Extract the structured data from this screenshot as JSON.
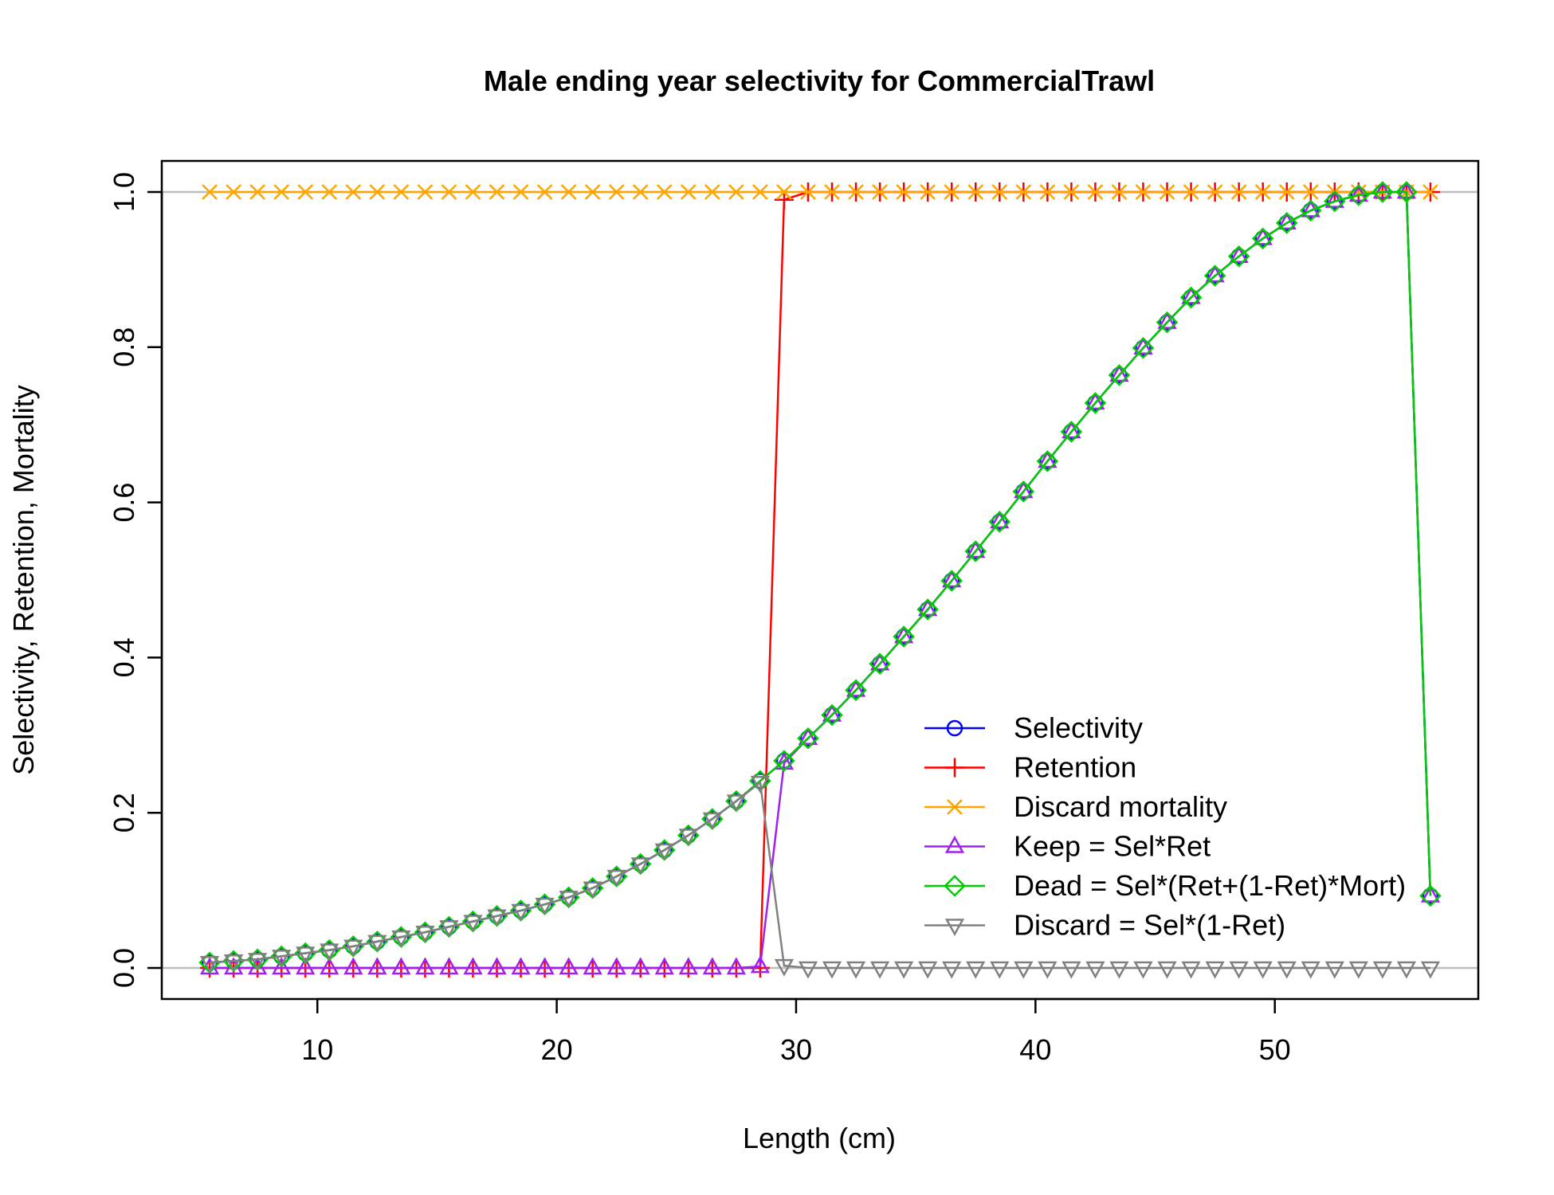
{
  "chart_data": {
    "type": "line",
    "title": "Male ending year selectivity for CommercialTrawl",
    "xlabel": "Length (cm)",
    "ylabel": "Selectivity, Retention, Mortality",
    "xlim": [
      3.5,
      58.5
    ],
    "ylim": [
      -0.04,
      1.04
    ],
    "xticks": [
      10,
      20,
      30,
      40,
      50
    ],
    "yticks": [
      0.0,
      0.2,
      0.4,
      0.6,
      0.8,
      1.0
    ],
    "xtick_labels": [
      "10",
      "20",
      "30",
      "40",
      "50"
    ],
    "ytick_labels": [
      "0.0",
      "0.2",
      "0.4",
      "0.6",
      "0.8",
      "1.0"
    ],
    "reference_lines": [
      0,
      1
    ],
    "legend_position": "bottom-right",
    "x": [
      5.5,
      6.5,
      7.5,
      8.5,
      9.5,
      10.5,
      11.5,
      12.5,
      13.5,
      14.5,
      15.5,
      16.5,
      17.5,
      18.5,
      19.5,
      20.5,
      21.5,
      22.5,
      23.5,
      24.5,
      25.5,
      26.5,
      27.5,
      28.5,
      29.5,
      30.5,
      31.5,
      32.5,
      33.5,
      34.5,
      35.5,
      36.5,
      37.5,
      38.5,
      39.5,
      40.5,
      41.5,
      42.5,
      43.5,
      44.5,
      45.5,
      46.5,
      47.5,
      48.5,
      49.5,
      50.5,
      51.5,
      52.5,
      53.5,
      54.5,
      55.5,
      56.5
    ],
    "series": [
      {
        "name": "Selectivity",
        "color": "#0000ff",
        "marker": "circle",
        "values": [
          0.007,
          0.009,
          0.011,
          0.015,
          0.019,
          0.023,
          0.028,
          0.034,
          0.04,
          0.046,
          0.053,
          0.06,
          0.067,
          0.074,
          0.082,
          0.091,
          0.103,
          0.118,
          0.134,
          0.152,
          0.171,
          0.192,
          0.215,
          0.241,
          0.267,
          0.296,
          0.326,
          0.358,
          0.392,
          0.427,
          0.462,
          0.499,
          0.537,
          0.575,
          0.614,
          0.653,
          0.691,
          0.728,
          0.764,
          0.799,
          0.832,
          0.864,
          0.892,
          0.917,
          0.94,
          0.96,
          0.976,
          0.988,
          0.996,
          1.0,
          1.0,
          0.093
        ]
      },
      {
        "name": "Retention",
        "color": "#ff0000",
        "marker": "plus",
        "values": [
          0,
          0,
          0,
          0,
          0,
          0,
          0,
          0,
          0,
          0,
          0,
          0,
          0,
          0,
          0,
          0,
          0,
          0,
          0,
          0,
          0,
          0,
          0,
          0,
          0.99,
          1,
          1,
          1,
          1,
          1,
          1,
          1,
          1,
          1,
          1,
          1,
          1,
          1,
          1,
          1,
          1,
          1,
          1,
          1,
          1,
          1,
          1,
          1,
          1,
          1,
          1,
          1
        ]
      },
      {
        "name": "Discard mortality",
        "color": "#ffa500",
        "marker": "x",
        "values": [
          1,
          1,
          1,
          1,
          1,
          1,
          1,
          1,
          1,
          1,
          1,
          1,
          1,
          1,
          1,
          1,
          1,
          1,
          1,
          1,
          1,
          1,
          1,
          1,
          1,
          1,
          1,
          1,
          1,
          1,
          1,
          1,
          1,
          1,
          1,
          1,
          1,
          1,
          1,
          1,
          1,
          1,
          1,
          1,
          1,
          1,
          1,
          1,
          1,
          1,
          1,
          1
        ]
      },
      {
        "name": "Keep = Sel*Ret",
        "color": "#a020f0",
        "marker": "triangle-up",
        "values": [
          0,
          0,
          0,
          0,
          0,
          0,
          0,
          0,
          0,
          0,
          0,
          0,
          0,
          0,
          0,
          0,
          0,
          0,
          0,
          0,
          0,
          0,
          0,
          0.002,
          0.264,
          0.296,
          0.326,
          0.358,
          0.392,
          0.427,
          0.462,
          0.499,
          0.537,
          0.575,
          0.614,
          0.653,
          0.691,
          0.728,
          0.764,
          0.799,
          0.832,
          0.864,
          0.892,
          0.917,
          0.94,
          0.96,
          0.976,
          0.988,
          0.996,
          1.0,
          1.0,
          0.093
        ]
      },
      {
        "name": "Dead = Sel*(Ret+(1-Ret)*Mort)",
        "color": "#00cd00",
        "marker": "diamond",
        "values": [
          0.007,
          0.009,
          0.011,
          0.015,
          0.019,
          0.023,
          0.028,
          0.034,
          0.04,
          0.046,
          0.053,
          0.06,
          0.067,
          0.074,
          0.082,
          0.091,
          0.103,
          0.118,
          0.134,
          0.152,
          0.171,
          0.192,
          0.215,
          0.241,
          0.267,
          0.296,
          0.326,
          0.358,
          0.392,
          0.427,
          0.462,
          0.499,
          0.537,
          0.575,
          0.614,
          0.653,
          0.691,
          0.728,
          0.764,
          0.799,
          0.832,
          0.864,
          0.892,
          0.917,
          0.94,
          0.96,
          0.976,
          0.988,
          0.996,
          1.0,
          1.0,
          0.093
        ]
      },
      {
        "name": "Discard = Sel*(1-Ret)",
        "color": "#808080",
        "marker": "triangle-down",
        "values": [
          0.007,
          0.009,
          0.011,
          0.015,
          0.019,
          0.023,
          0.028,
          0.034,
          0.04,
          0.046,
          0.053,
          0.06,
          0.067,
          0.074,
          0.082,
          0.091,
          0.103,
          0.118,
          0.134,
          0.152,
          0.171,
          0.192,
          0.215,
          0.239,
          0.003,
          0,
          0,
          0,
          0,
          0,
          0,
          0,
          0,
          0,
          0,
          0,
          0,
          0,
          0,
          0,
          0,
          0,
          0,
          0,
          0,
          0,
          0,
          0,
          0,
          0,
          0,
          0
        ]
      }
    ]
  }
}
